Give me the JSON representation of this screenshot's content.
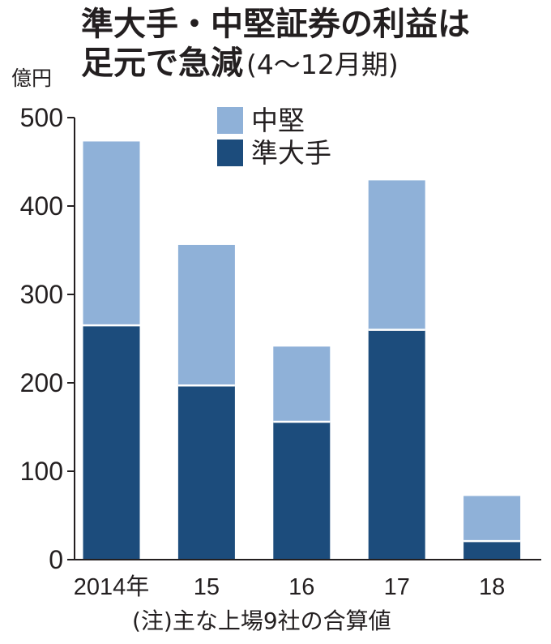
{
  "chart_data": {
    "type": "bar",
    "stacked": true,
    "title_lines": [
      "準大手・中堅証券の利益は",
      "足元で急減"
    ],
    "subtitle": "(4〜12月期)",
    "ylabel": "億円",
    "categories": [
      "2014年",
      "15",
      "16",
      "17",
      "18"
    ],
    "series": [
      {
        "name": "準大手",
        "values": [
          265,
          197,
          156,
          260,
          21
        ],
        "color": "#1c4c7c"
      },
      {
        "name": "中堅",
        "values": [
          208,
          159,
          85,
          169,
          51
        ],
        "color": "#8fb1d8"
      }
    ],
    "ylim": [
      0,
      500
    ],
    "yticks": [
      0,
      100,
      200,
      300,
      400,
      500
    ],
    "grid": false,
    "legend": "top-center",
    "note": "(注)主な上場9社の合算値"
  }
}
